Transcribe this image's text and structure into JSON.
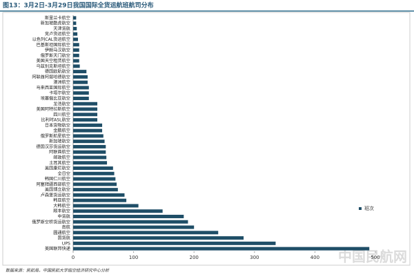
{
  "chart_data": {
    "type": "hbar",
    "title": "图13：3月2日-3月29日我国国际全货运航班航司分布",
    "source": "数据来源：民航局，中国民航大学临空经济研究中心分析",
    "watermark": "中国民航网",
    "categories": [
      "斯里兰卡航空",
      "新加坡酷虎航空",
      "天津货航",
      "竞卢货运航空",
      "以色列CAL货运航空",
      "巴基斯坦国际航空",
      "伊朗马汉航空",
      "俄罗斯天门航空",
      "美国天空租赁航空",
      "乌兹别克斯坦航空",
      "德国欧航航空",
      "阿联酋阿提哈德航空",
      "澳洲航空",
      "马来西亚国际航空",
      "卡塔尔航空",
      "埃塞俄比亚航空",
      "龙浩航空",
      "美国阿特拉斯航空",
      "四川航空",
      "比利时ASL航空",
      "日本货物航空",
      "金鹏航空",
      "俄罗斯航星航空",
      "新加坡航空",
      "德国汉莎货运航空",
      "阿联酋航空",
      "邮政航空",
      "土耳其航空",
      "美国康尼航空",
      "全日空",
      "韩国仁川航空",
      "阿塞拜疆西部航空",
      "美国博立航空",
      "卢森堡货运航空",
      "韩亚航空",
      "大韩航空",
      "顺丰航空",
      "中货航",
      "俄罗斯空桥货运航空",
      "南航",
      "圆通航空",
      "国货航",
      "UPS",
      "美国联邦快递"
    ],
    "series": [
      {
        "name": "班次",
        "color": "#1f4e67",
        "values": [
          5,
          5,
          6,
          7,
          8,
          10,
          10,
          10,
          10,
          11,
          22,
          24,
          24,
          26,
          26,
          26,
          40,
          40,
          40,
          40,
          48,
          48,
          50,
          52,
          54,
          54,
          55,
          56,
          66,
          68,
          70,
          72,
          74,
          85,
          88,
          108,
          148,
          183,
          190,
          200,
          240,
          282,
          335,
          490
        ]
      }
    ],
    "xlim": [
      0,
      500
    ],
    "xticks": [
      0,
      100,
      200,
      300,
      400,
      500
    ]
  }
}
